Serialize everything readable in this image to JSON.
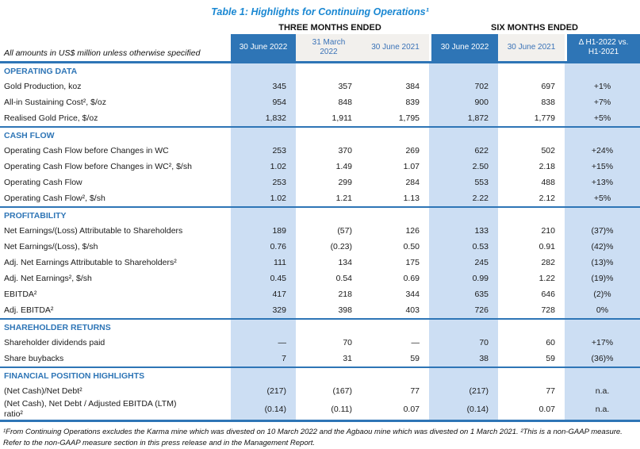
{
  "title": "Table 1: Highlights for Continuing Operations¹",
  "header": {
    "unit_note": "All amounts in US$ million unless otherwise specified",
    "groups": [
      {
        "label": "THREE MONTHS ENDED"
      },
      {
        "label": "SIX MONTHS ENDED"
      }
    ],
    "columns": [
      {
        "label": "30 June 2022",
        "variant": "dark"
      },
      {
        "label": "31 March\n2022",
        "variant": "light"
      },
      {
        "label": "30 June 2021",
        "variant": "light"
      },
      {
        "label": "30 June 2022",
        "variant": "dark"
      },
      {
        "label": "30 June 2021",
        "variant": "light"
      },
      {
        "label": "Δ H1-2022 vs.\nH1-2021",
        "variant": "dark"
      }
    ]
  },
  "sections": [
    {
      "heading": "OPERATING DATA",
      "rows": [
        {
          "label": "Gold Production, koz",
          "values": [
            "345",
            "357",
            "384",
            "702",
            "697",
            "+1%"
          ]
        },
        {
          "label": "All-in Sustaining Cost², $/oz",
          "values": [
            "954",
            "848",
            "839",
            "900",
            "838",
            "+7%"
          ]
        },
        {
          "label": "Realised Gold Price, $/oz",
          "values": [
            "1,832",
            "1,911",
            "1,795",
            "1,872",
            "1,779",
            "+5%"
          ]
        }
      ]
    },
    {
      "heading": "CASH FLOW",
      "rows": [
        {
          "label": "Operating Cash Flow before Changes in WC",
          "values": [
            "253",
            "370",
            "269",
            "622",
            "502",
            "+24%"
          ]
        },
        {
          "label": "Operating Cash Flow before Changes in WC², $/sh",
          "values": [
            "1.02",
            "1.49",
            "1.07",
            "2.50",
            "2.18",
            "+15%"
          ]
        },
        {
          "label": "Operating Cash Flow",
          "values": [
            "253",
            "299",
            "284",
            "553",
            "488",
            "+13%"
          ]
        },
        {
          "label": "Operating Cash Flow², $/sh",
          "values": [
            "1.02",
            "1.21",
            "1.13",
            "2.22",
            "2.12",
            "+5%"
          ]
        }
      ]
    },
    {
      "heading": "PROFITABILITY",
      "rows": [
        {
          "label": "Net Earnings/(Loss) Attributable to Shareholders",
          "values": [
            "189",
            "(57)",
            "126",
            "133",
            "210",
            "(37)%"
          ]
        },
        {
          "label": "Net Earnings/(Loss), $/sh",
          "values": [
            "0.76",
            "(0.23)",
            "0.50",
            "0.53",
            "0.91",
            "(42)%"
          ]
        },
        {
          "label": "Adj. Net Earnings Attributable to Shareholders²",
          "values": [
            "111",
            "134",
            "175",
            "245",
            "282",
            "(13)%"
          ]
        },
        {
          "label": "Adj. Net Earnings², $/sh",
          "values": [
            "0.45",
            "0.54",
            "0.69",
            "0.99",
            "1.22",
            "(19)%"
          ]
        },
        {
          "label": "EBITDA²",
          "values": [
            "417",
            "218",
            "344",
            "635",
            "646",
            "(2)%"
          ]
        },
        {
          "label": "Adj. EBITDA²",
          "values": [
            "329",
            "398",
            "403",
            "726",
            "728",
            "0%"
          ]
        }
      ]
    },
    {
      "heading": "SHAREHOLDER RETURNS",
      "rows": [
        {
          "label": "Shareholder dividends paid",
          "values": [
            "—",
            "70",
            "—",
            "70",
            "60",
            "+17%"
          ]
        },
        {
          "label": "Share buybacks",
          "values": [
            "7",
            "31",
            "59",
            "38",
            "59",
            "(36)%"
          ]
        }
      ]
    },
    {
      "heading": "FINANCIAL POSITION HIGHLIGHTS",
      "rows": [
        {
          "label": "(Net Cash)/Net Debt²",
          "values": [
            "(217)",
            "(167)",
            "77",
            "(217)",
            "77",
            "n.a."
          ]
        },
        {
          "label": "(Net Cash), Net Debt / Adjusted EBITDA (LTM)\nratio²",
          "values": [
            "(0.14)",
            "(0.11)",
            "0.07",
            "(0.14)",
            "0.07",
            "n.a."
          ]
        }
      ]
    }
  ],
  "footnote": "¹From Continuing Operations excludes the Karma mine which was divested on 10 March 2022 and the Agbaou mine which was divested on 1 March 2021. ²This is a non-GAAP measure. Refer to the non-GAAP measure section in this press release and in the Management Report.",
  "colors": {
    "title_blue": "#1987D2",
    "header_dark": "#2E75B6",
    "header_light_bg": "#F2F0ED",
    "header_light_text": "#3A72B7",
    "shaded_col": "#CCDEF3",
    "divider": "#2E75B6",
    "section_heading": "#2E75B6"
  }
}
